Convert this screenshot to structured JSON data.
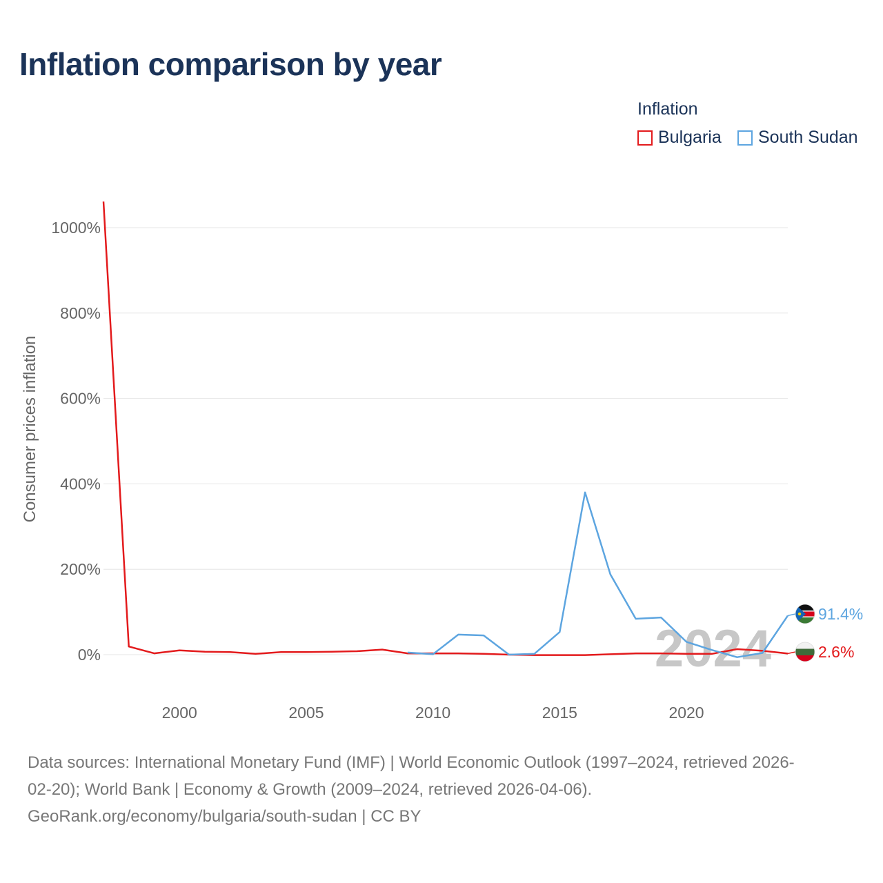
{
  "title": "Inflation comparison by year",
  "legend": {
    "title": "Inflation",
    "items": [
      {
        "label": "Bulgaria",
        "color": "#e31a1c"
      },
      {
        "label": "South Sudan",
        "color": "#5da5e0"
      }
    ]
  },
  "chart_data": {
    "type": "line",
    "ylabel": "Consumer prices inflation",
    "xlabel": "",
    "ylim": [
      -100,
      1060
    ],
    "xlim": [
      1997,
      2024
    ],
    "yticks": [
      0,
      200,
      400,
      600,
      800,
      1000
    ],
    "ytick_labels": [
      "0%",
      "200%",
      "400%",
      "600%",
      "800%",
      "1000%"
    ],
    "xticks": [
      2000,
      2005,
      2010,
      2015,
      2020
    ],
    "xtick_labels": [
      "2000",
      "2005",
      "2010",
      "2015",
      "2020"
    ],
    "grid": true,
    "watermark_year": "2024",
    "series": [
      {
        "name": "Bulgaria",
        "color": "#e31a1c",
        "end_label": "2.6%",
        "x": [
          1997,
          1998,
          1999,
          2000,
          2001,
          2002,
          2003,
          2004,
          2005,
          2006,
          2007,
          2008,
          2009,
          2010,
          2011,
          2012,
          2013,
          2014,
          2015,
          2016,
          2017,
          2018,
          2019,
          2020,
          2021,
          2022,
          2023,
          2024
        ],
        "y": [
          1061,
          19,
          3,
          10,
          7,
          6,
          2,
          6,
          6,
          7,
          8,
          12,
          3,
          3,
          3,
          2,
          0,
          -1,
          -1,
          -1,
          1,
          3,
          3,
          2,
          2,
          13,
          9,
          2.6
        ]
      },
      {
        "name": "South Sudan",
        "color": "#5da5e0",
        "end_label": "91.4%",
        "x": [
          2009,
          2010,
          2011,
          2012,
          2013,
          2014,
          2015,
          2016,
          2017,
          2018,
          2019,
          2020,
          2021,
          2022,
          2023,
          2024
        ],
        "y": [
          5,
          1,
          47,
          45,
          0,
          2,
          53,
          380,
          188,
          84,
          87,
          30,
          11,
          -6,
          4,
          91.4
        ]
      }
    ]
  },
  "sources": {
    "line1": "Data sources: International Monetary Fund (IMF) | World Economic Outlook (1997–2024, retrieved 2026-",
    "line2": "02-20); World Bank | Economy & Growth (2009–2024, retrieved 2026-04-06).",
    "line3": "GeoRank.org/economy/bulgaria/south-sudan | CC BY"
  }
}
